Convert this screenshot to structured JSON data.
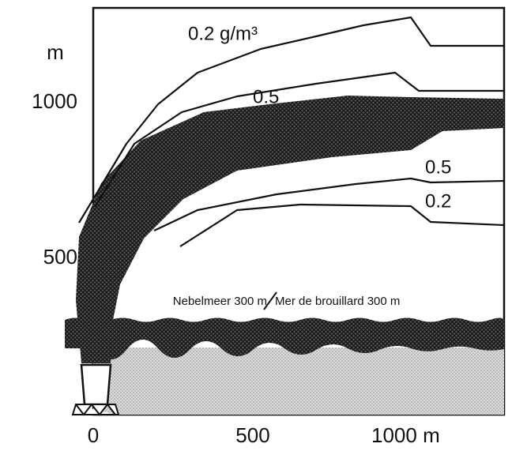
{
  "axes": {
    "y_unit": "m",
    "y_labels": [
      "1000",
      "500"
    ],
    "x_labels": [
      "0",
      "500",
      "1000 m"
    ]
  },
  "contours": {
    "outer_upper": "0.2 g/m³",
    "inner_upper": "0.5",
    "inner_lower": "0.5",
    "outer_lower": "0.2"
  },
  "fog": {
    "left": "Nebelmeer 300 m",
    "right": "Mer de brouillard 300 m"
  }
}
